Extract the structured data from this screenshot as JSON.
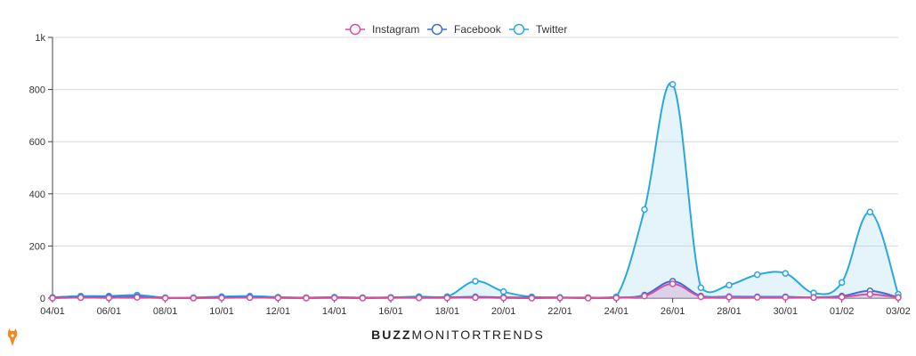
{
  "colors": {
    "instagram": "#d6509f",
    "facebook": "#3a6fd0",
    "twitter": "#29a8e0",
    "grid": "#d8d8d8",
    "axis": "#444444"
  },
  "chart_data": {
    "type": "area",
    "title": "",
    "xlabel": "",
    "ylabel": "",
    "ylim": [
      0,
      1000
    ],
    "y_ticks": [
      "0",
      "200",
      "400",
      "600",
      "800",
      "1k"
    ],
    "x_tick_labels": [
      "04/01",
      "06/01",
      "08/01",
      "10/01",
      "12/01",
      "14/01",
      "16/01",
      "18/01",
      "20/01",
      "22/01",
      "24/01",
      "26/01",
      "28/01",
      "30/01",
      "01/02",
      "03/02"
    ],
    "x": [
      "04/01",
      "05/01",
      "06/01",
      "07/01",
      "08/01",
      "09/01",
      "10/01",
      "11/01",
      "12/01",
      "13/01",
      "14/01",
      "15/01",
      "16/01",
      "17/01",
      "18/01",
      "19/01",
      "20/01",
      "21/01",
      "22/01",
      "23/01",
      "24/01",
      "25/01",
      "26/01",
      "27/01",
      "28/01",
      "29/01",
      "30/01",
      "31/01",
      "01/02",
      "02/02",
      "03/02"
    ],
    "legend_position": "top-center",
    "grid": true,
    "series": [
      {
        "name": "Instagram",
        "values": [
          0,
          2,
          1,
          3,
          0,
          0,
          1,
          2,
          1,
          0,
          1,
          0,
          1,
          1,
          1,
          2,
          1,
          0,
          1,
          0,
          1,
          8,
          55,
          5,
          4,
          3,
          3,
          2,
          4,
          15,
          2
        ]
      },
      {
        "name": "Facebook",
        "values": [
          2,
          4,
          5,
          6,
          1,
          1,
          3,
          4,
          2,
          1,
          2,
          1,
          2,
          2,
          3,
          5,
          3,
          2,
          2,
          1,
          2,
          12,
          65,
          8,
          6,
          5,
          5,
          3,
          8,
          28,
          3
        ]
      },
      {
        "name": "Twitter",
        "values": [
          3,
          8,
          8,
          12,
          2,
          2,
          6,
          8,
          4,
          2,
          4,
          2,
          3,
          6,
          6,
          65,
          25,
          5,
          3,
          2,
          5,
          340,
          820,
          40,
          50,
          90,
          95,
          20,
          60,
          330,
          15
        ]
      }
    ]
  },
  "branding": {
    "part1": "BUZZ",
    "part2": "MONITOR",
    "part3": "TRENDS"
  }
}
